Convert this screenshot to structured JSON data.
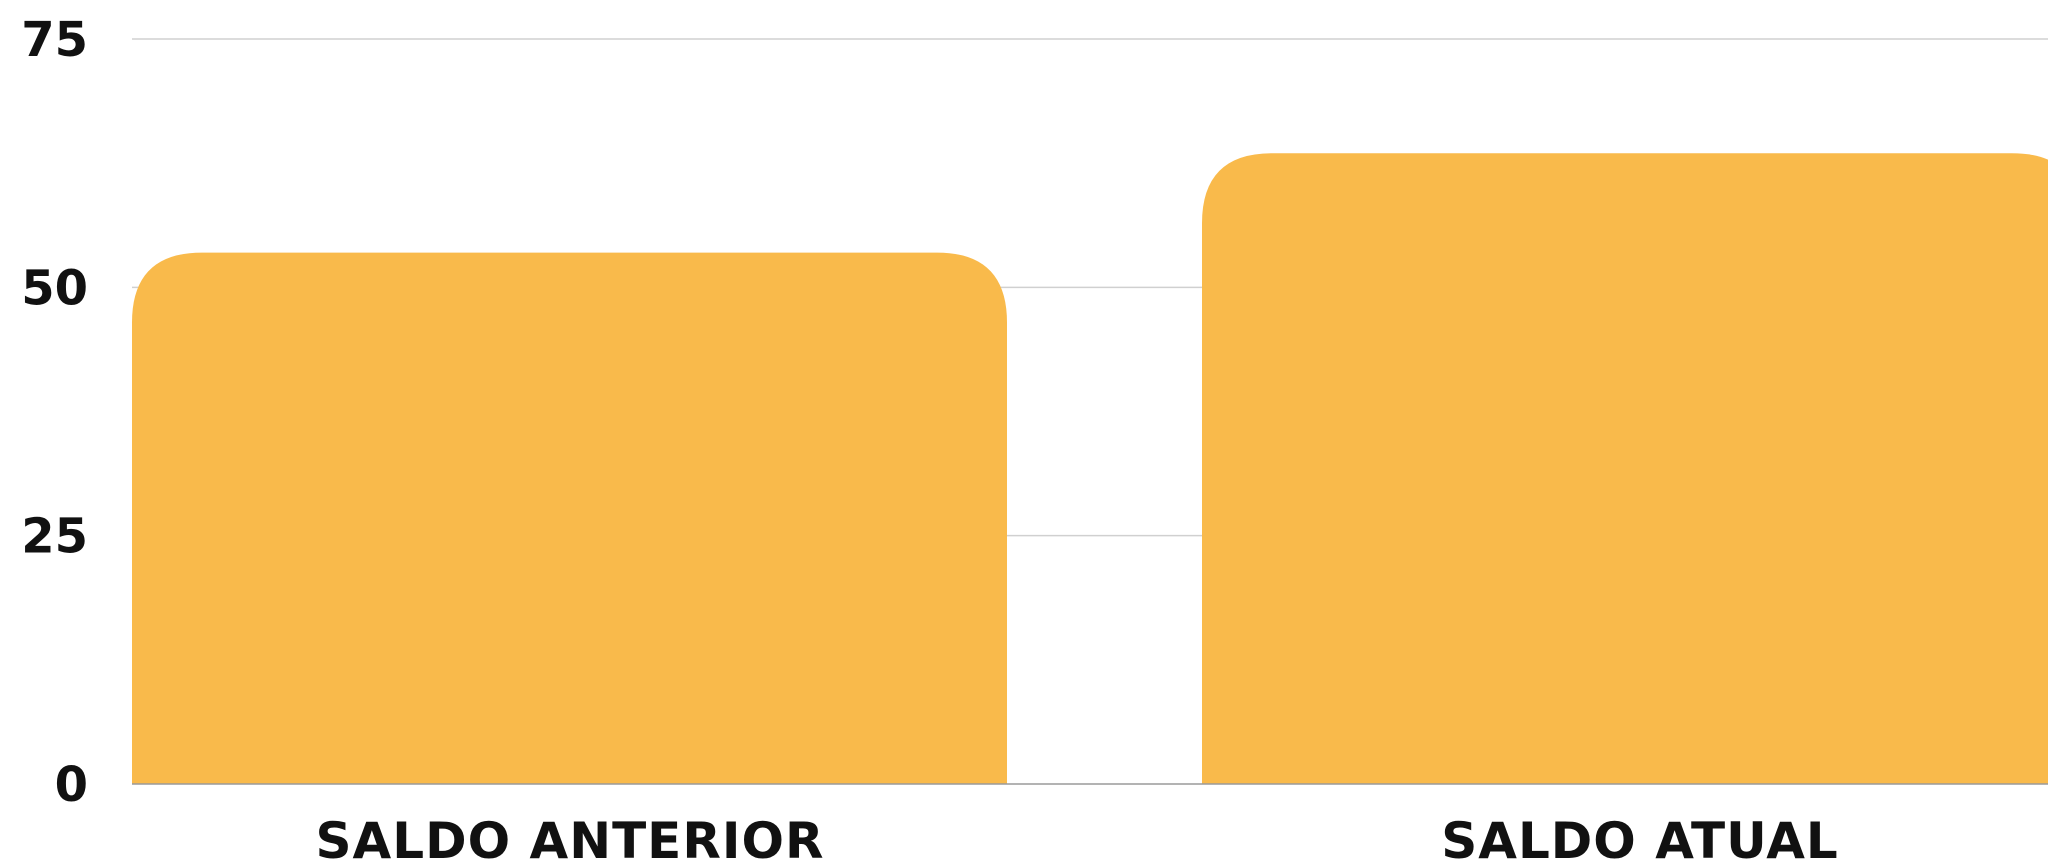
{
  "chart_data": {
    "type": "bar",
    "categories": [
      "SALDO ANTERIOR",
      "SALDO ATUAL"
    ],
    "values": [
      53.5,
      63.5
    ],
    "title": "",
    "xlabel": "",
    "ylabel": "",
    "ylim": [
      0,
      75
    ],
    "yticks": [
      "0",
      "25",
      "50",
      "75"
    ],
    "grid": true,
    "legend": "none",
    "bar_color": "#F9BA4B"
  }
}
